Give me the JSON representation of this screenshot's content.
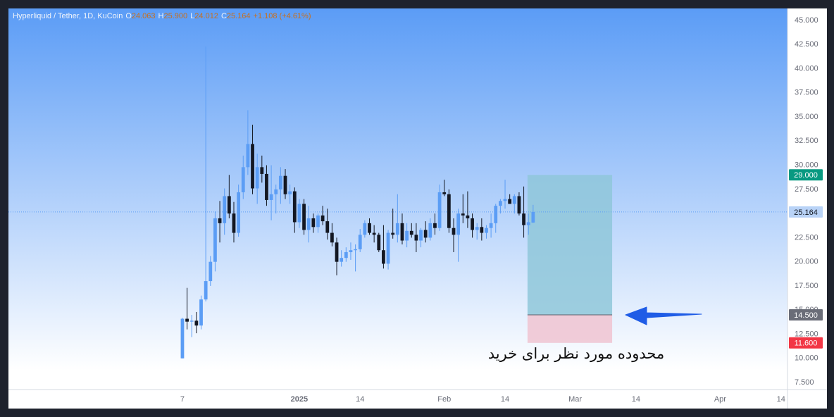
{
  "chart_data": {
    "type": "candlestick",
    "title": "Hyperliquid / Tether, 1D, KuCoin",
    "legend": [
      {
        "key": "O",
        "value": "24.063"
      },
      {
        "key": "H",
        "value": "25.900"
      },
      {
        "key": "L",
        "value": "24.012"
      },
      {
        "key": "C",
        "value": "25.164"
      },
      {
        "key": "",
        "value": "+1.108 (+4.61%)"
      }
    ],
    "open": [
      10.0,
      14.1,
      13.8,
      13.9,
      13.4,
      16.1,
      18.0,
      20.0,
      24.5,
      24.0,
      26.8,
      25.0,
      23.0,
      27.2,
      29.8,
      32.2,
      27.6,
      29.8,
      29.1,
      26.4,
      27.0,
      27.5,
      28.9,
      27.0,
      27.3,
      24.1,
      26.0,
      23.3,
      24.5,
      23.6,
      24.8,
      24.2,
      23.0,
      22.0,
      20.0,
      20.4,
      21.0,
      21.2,
      21.3,
      22.8,
      24.0,
      23.0,
      22.8,
      21.2,
      19.8,
      23.0,
      22.8,
      24.0,
      22.2,
      23.2,
      22.8,
      22.2,
      23.3,
      22.5,
      24.0,
      23.5,
      27.2,
      27.0,
      23.5,
      22.8,
      25.0,
      24.8,
      24.5,
      23.3,
      23.6,
      23.0,
      23.5,
      24.0,
      25.8,
      26.3,
      26.5,
      26.0,
      26.8,
      25.0,
      23.8,
      24.063
    ],
    "high": [
      14.2,
      17.3,
      14.5,
      14.8,
      16.5,
      42.3,
      20.6,
      25.2,
      26.3,
      27.6,
      29.0,
      26.2,
      28.0,
      31.0,
      35.7,
      34.2,
      31.2,
      31.0,
      30.0,
      30.0,
      28.0,
      29.8,
      29.6,
      28.0,
      27.7,
      26.5,
      26.5,
      25.8,
      25.0,
      25.0,
      25.8,
      25.5,
      24.0,
      22.5,
      21.2,
      21.5,
      22.0,
      21.8,
      23.4,
      24.3,
      24.5,
      23.8,
      23.0,
      23.8,
      23.3,
      25.5,
      27.0,
      25.0,
      24.0,
      24.0,
      24.0,
      23.5,
      24.2,
      24.5,
      25.0,
      28.0,
      28.5,
      27.5,
      24.5,
      25.5,
      27.0,
      27.3,
      25.0,
      24.0,
      24.5,
      23.8,
      25.0,
      26.0,
      26.5,
      28.5,
      27.0,
      27.0,
      27.2,
      27.8,
      25.0,
      25.9
    ],
    "low": [
      10.0,
      13.0,
      12.2,
      12.6,
      13.0,
      15.9,
      17.5,
      19.0,
      22.0,
      22.8,
      24.5,
      22.0,
      22.6,
      26.5,
      29.0,
      27.0,
      26.0,
      28.2,
      25.8,
      24.3,
      25.0,
      26.0,
      26.5,
      26.0,
      23.0,
      23.5,
      22.8,
      22.0,
      23.0,
      23.0,
      23.8,
      22.3,
      21.6,
      18.6,
      19.5,
      20.0,
      20.2,
      19.0,
      21.0,
      22.5,
      22.8,
      22.0,
      21.0,
      19.3,
      19.2,
      22.4,
      22.0,
      21.8,
      21.5,
      22.5,
      21.0,
      21.5,
      22.0,
      22.2,
      22.8,
      23.2,
      26.8,
      23.0,
      21.0,
      20.0,
      24.0,
      23.5,
      22.5,
      22.3,
      22.2,
      22.4,
      22.5,
      23.0,
      25.0,
      25.5,
      26.0,
      25.0,
      24.8,
      22.5,
      22.8,
      24.012
    ],
    "close": [
      14.1,
      13.8,
      13.9,
      13.4,
      16.1,
      18.0,
      20.0,
      24.5,
      24.0,
      26.8,
      25.0,
      23.0,
      27.2,
      29.8,
      32.2,
      27.6,
      29.8,
      29.1,
      26.4,
      27.0,
      27.5,
      28.9,
      27.0,
      27.3,
      24.1,
      26.0,
      23.3,
      24.5,
      23.6,
      24.8,
      24.2,
      23.0,
      22.0,
      20.0,
      20.4,
      21.0,
      21.2,
      21.3,
      22.8,
      24.0,
      23.0,
      22.8,
      21.2,
      19.8,
      23.0,
      22.8,
      24.0,
      22.2,
      23.2,
      22.8,
      22.2,
      23.3,
      22.5,
      24.0,
      23.5,
      27.2,
      27.0,
      23.5,
      22.8,
      25.0,
      24.8,
      24.5,
      23.3,
      23.6,
      23.0,
      23.5,
      24.0,
      25.8,
      26.3,
      26.5,
      26.0,
      26.8,
      25.0,
      23.8,
      24.1,
      25.164
    ],
    "up_color": "#5b9df5",
    "down_color": "#131722",
    "xlim": [
      -37.2,
      129.4
    ],
    "xticks": [
      {
        "value": 0,
        "label": "7"
      },
      {
        "value": 25,
        "label": "2025"
      },
      {
        "value": 38,
        "label": "14"
      },
      {
        "value": 56,
        "label": "Feb"
      },
      {
        "value": 69,
        "label": "14"
      },
      {
        "value": 84,
        "label": "Mar"
      },
      {
        "value": 97,
        "label": "14"
      },
      {
        "value": 115,
        "label": "Apr"
      },
      {
        "value": 128,
        "label": "14"
      }
    ],
    "ylim": [
      6.77,
      46.24
    ],
    "yticks": [
      {
        "value": 7.5,
        "label": "7.500"
      },
      {
        "value": 10,
        "label": "10.000"
      },
      {
        "value": 12.5,
        "label": "12.500"
      },
      {
        "value": 15,
        "label": "15.000"
      },
      {
        "value": 17.5,
        "label": "17.500"
      },
      {
        "value": 20,
        "label": "20.000"
      },
      {
        "value": 22.5,
        "label": "22.500"
      },
      {
        "value": 25,
        "label": "25.000"
      },
      {
        "value": 27.5,
        "label": "27.500"
      },
      {
        "value": 30,
        "label": "30.000"
      },
      {
        "value": 32.5,
        "label": "32.500"
      },
      {
        "value": 35,
        "label": "35.000"
      },
      {
        "value": 37.5,
        "label": "37.500"
      },
      {
        "value": 40,
        "label": "40.000"
      },
      {
        "value": 42.5,
        "label": "42.500"
      },
      {
        "value": 45,
        "label": "45.000"
      }
    ],
    "current_price": {
      "value": 25.164,
      "label": "25.164",
      "color": "#b9d3f7"
    },
    "position": {
      "x_range": [
        73.8,
        91.9
      ],
      "target": {
        "value": 29.0,
        "label": "29.000",
        "color": "#089981"
      },
      "entry": {
        "value": 14.5,
        "label": "14.500",
        "color": "#6a6d78"
      },
      "stop": {
        "value": 11.6,
        "label": "11.600",
        "color": "#f23645"
      },
      "profit_color": "#8fc7d9",
      "loss_color": "#f0c6d4"
    },
    "annotation": "محدوده مورد نظر برای خرید"
  }
}
